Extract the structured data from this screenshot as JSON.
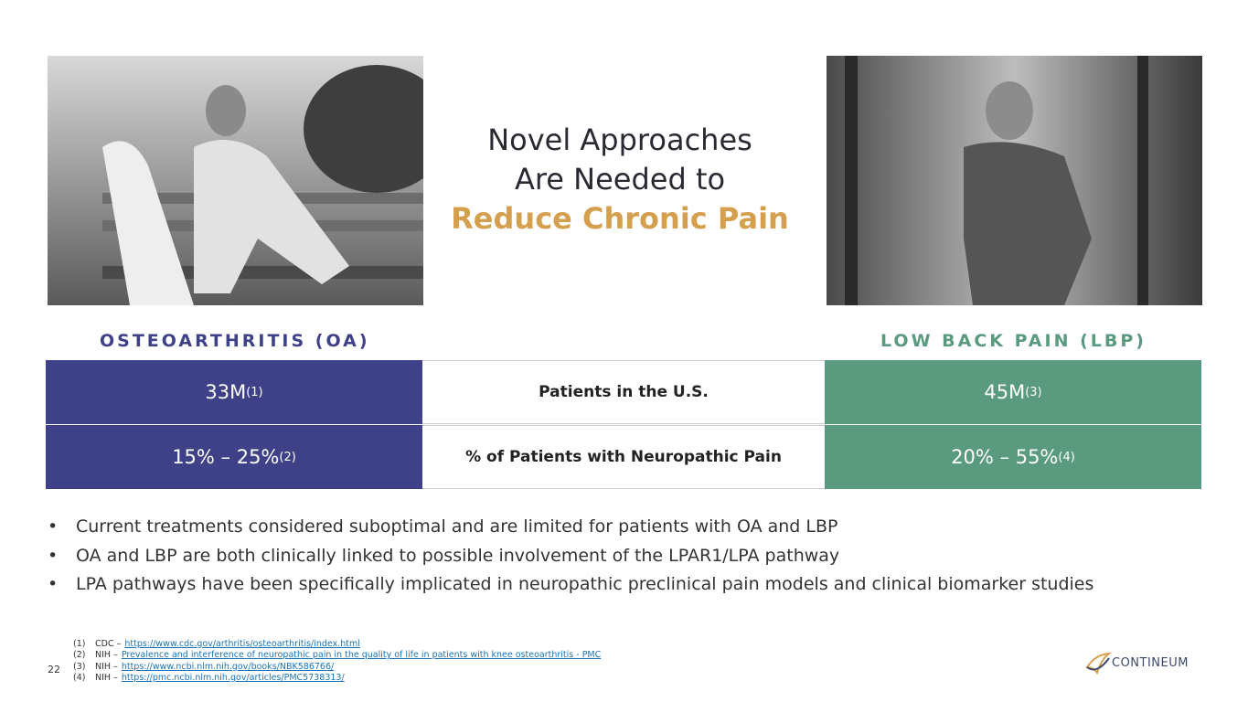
{
  "title": {
    "line1": "Novel Approaches",
    "line2": "Are Needed to",
    "highlight": "Reduce Chronic Pain"
  },
  "table": {
    "headers": [
      "OSTEOARTHRITIS (OA)",
      "LOW BACK PAIN (LBP)"
    ],
    "rows": [
      {
        "oa": "33M",
        "oa_ref": "(1)",
        "label": "Patients in the U.S.",
        "lbp": "45M",
        "lbp_ref": "(3)"
      },
      {
        "oa": "15% – 25%",
        "oa_ref": "(2)",
        "label": "% of Patients with Neuropathic Pain",
        "lbp": "20% – 55%",
        "lbp_ref": "(4)"
      }
    ]
  },
  "bullets": [
    "Current treatments considered suboptimal and are limited for patients with OA and LBP",
    "OA and LBP are both clinically linked to possible involvement of the LPAR1/LPA pathway",
    "LPA pathways have been specifically implicated in neuropathic preclinical pain models and clinical biomarker studies"
  ],
  "footnotes": [
    {
      "number": "(1)",
      "source": "CDC –",
      "link": "https://www.cdc.gov/arthritis/osteoarthritis/index.html"
    },
    {
      "number": "(2)",
      "source": "NIH –",
      "link": "Prevalence and interference of neuropathic pain in the quality of life in patients with knee osteoarthritis - PMC"
    },
    {
      "number": "(3)",
      "source": "NIH –",
      "link": "https://www.ncbi.nlm.nih.gov/books/NBK586766/"
    },
    {
      "number": "(4)",
      "source": "NIH –",
      "link": "https://pmc.ncbi.nlm.nih.gov/articles/PMC5738313/"
    }
  ],
  "page_number": "22",
  "logo": "CONTINEUM"
}
